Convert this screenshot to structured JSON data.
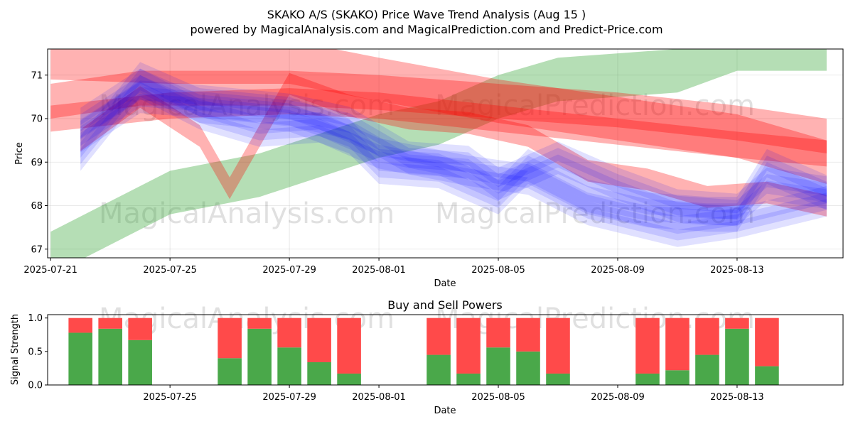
{
  "title_line1": "SKAKO A/S (SKAKO) Price Wave Trend Analysis (Aug 15 )",
  "title_line2": "powered by MagicalAnalysis.com and MagicalPrediction.com and Predict-Price.com",
  "watermarks": [
    "MagicalAnalysis.com",
    "MagicalPrediction.com"
  ],
  "colors": {
    "green": "#2ca02c",
    "red": "#ff0000",
    "blue": "#0000ff",
    "buy": "#4aa84a",
    "sell": "#ff4a4a"
  },
  "chart_data": [
    {
      "type": "area",
      "xlabel": "Date",
      "ylabel": "Price",
      "x_range": [
        "2025-07-21",
        "2025-08-16"
      ],
      "ylim": [
        66.8,
        71.6
      ],
      "yticks": [
        67,
        68,
        69,
        70,
        71
      ],
      "xtick_labels": [
        "2025-07-21",
        "2025-07-25",
        "2025-07-29",
        "2025-08-01",
        "2025-08-05",
        "2025-08-09",
        "2025-08-13"
      ],
      "grid": true,
      "series": [
        {
          "color": "green",
          "points": [
            [
              "2025-07-21",
              66.9
            ],
            [
              "2025-07-25",
              68.3
            ],
            [
              "2025-07-28",
              68.7
            ],
            [
              "2025-08-01",
              69.6
            ],
            [
              "2025-08-03",
              69.9
            ],
            [
              "2025-08-05",
              70.5
            ],
            [
              "2025-08-07",
              70.9
            ],
            [
              "2025-08-11",
              71.1
            ],
            [
              "2025-08-13",
              71.6
            ],
            [
              "2025-08-16",
              71.6
            ]
          ],
          "width": 1.0
        },
        {
          "color": "red",
          "points": [
            [
              "2025-07-21",
              71.4
            ],
            [
              "2025-07-25",
              71.3
            ],
            [
              "2025-07-29",
              71.3
            ],
            [
              "2025-08-01",
              70.9
            ],
            [
              "2025-08-05",
              70.4
            ],
            [
              "2025-08-09",
              70.0
            ],
            [
              "2025-08-13",
              69.6
            ],
            [
              "2025-08-16",
              69.0
            ]
          ],
          "width": 1.0
        },
        {
          "color": "red",
          "points": [
            [
              "2025-07-21",
              70.4
            ],
            [
              "2025-07-24",
              70.7
            ],
            [
              "2025-07-29",
              70.7
            ],
            [
              "2025-08-01",
              70.6
            ],
            [
              "2025-08-05",
              70.4
            ],
            [
              "2025-08-09",
              70.2
            ],
            [
              "2025-08-13",
              69.9
            ],
            [
              "2025-08-16",
              69.6
            ]
          ],
          "width": 0.8
        },
        {
          "color": "red",
          "points": [
            [
              "2025-07-21",
              70.0
            ],
            [
              "2025-07-25",
              70.3
            ],
            [
              "2025-07-29",
              70.4
            ],
            [
              "2025-08-01",
              70.3
            ],
            [
              "2025-08-05",
              70.0
            ],
            [
              "2025-08-09",
              69.7
            ],
            [
              "2025-08-13",
              69.4
            ],
            [
              "2025-08-16",
              69.2
            ]
          ],
          "width": 0.6
        },
        {
          "color": "red",
          "points": [
            [
              "2025-07-22",
              69.5
            ],
            [
              "2025-07-24",
              70.5
            ],
            [
              "2025-07-26",
              69.6
            ],
            [
              "2025-07-27",
              68.4
            ],
            [
              "2025-07-29",
              70.8
            ],
            [
              "2025-07-31",
              70.3
            ],
            [
              "2025-08-02",
              70.0
            ],
            [
              "2025-08-04",
              69.9
            ],
            [
              "2025-08-06",
              69.6
            ],
            [
              "2025-08-08",
              68.8
            ],
            [
              "2025-08-10",
              68.6
            ],
            [
              "2025-08-12",
              68.2
            ],
            [
              "2025-08-14",
              68.3
            ],
            [
              "2025-08-16",
              68.0
            ]
          ],
          "width": 0.5
        },
        {
          "color": "blue",
          "points": [
            [
              "2025-07-22",
              69.2
            ],
            [
              "2025-07-24",
              70.9
            ],
            [
              "2025-07-26",
              70.3
            ],
            [
              "2025-07-29",
              70.1
            ],
            [
              "2025-07-31",
              69.6
            ],
            [
              "2025-08-01",
              68.9
            ],
            [
              "2025-08-03",
              68.8
            ],
            [
              "2025-08-05",
              68.2
            ],
            [
              "2025-08-06",
              68.9
            ],
            [
              "2025-08-08",
              68.2
            ],
            [
              "2025-08-10",
              67.9
            ],
            [
              "2025-08-12",
              67.8
            ],
            [
              "2025-08-13",
              67.8
            ],
            [
              "2025-08-14",
              68.9
            ],
            [
              "2025-08-16",
              68.3
            ]
          ],
          "width": 0.5
        },
        {
          "color": "blue",
          "points": [
            [
              "2025-07-22",
              69.6
            ],
            [
              "2025-07-24",
              70.5
            ],
            [
              "2025-07-26",
              70.4
            ],
            [
              "2025-07-29",
              70.2
            ],
            [
              "2025-07-31",
              69.9
            ],
            [
              "2025-08-02",
              69.1
            ],
            [
              "2025-08-04",
              69.0
            ],
            [
              "2025-08-05",
              68.5
            ],
            [
              "2025-08-07",
              69.1
            ],
            [
              "2025-08-09",
              68.5
            ],
            [
              "2025-08-11",
              68.0
            ],
            [
              "2025-08-13",
              67.9
            ],
            [
              "2025-08-14",
              68.5
            ],
            [
              "2025-08-16",
              68.3
            ]
          ],
          "width": 0.45
        },
        {
          "color": "blue",
          "points": [
            [
              "2025-07-22",
              69.9
            ],
            [
              "2025-07-24",
              70.8
            ],
            [
              "2025-07-26",
              70.1
            ],
            [
              "2025-07-28",
              69.7
            ],
            [
              "2025-07-30",
              69.8
            ],
            [
              "2025-08-01",
              69.2
            ],
            [
              "2025-08-04",
              68.8
            ],
            [
              "2025-08-06",
              68.6
            ],
            [
              "2025-08-08",
              67.9
            ],
            [
              "2025-08-11",
              67.4
            ],
            [
              "2025-08-13",
              67.6
            ],
            [
              "2025-08-16",
              68.1
            ]
          ],
          "width": 0.4
        }
      ]
    },
    {
      "type": "bar",
      "title": "Buy and Sell Powers",
      "xlabel": "Date",
      "ylabel": "Signal Strength",
      "ylim": [
        0,
        1.05
      ],
      "yticks": [
        "0.0",
        "0.5",
        "1.0"
      ],
      "x_range": [
        "2025-07-21",
        "2025-08-16"
      ],
      "xtick_labels": [
        "2025-07-25",
        "2025-07-29",
        "2025-08-01",
        "2025-08-05",
        "2025-08-09",
        "2025-08-13"
      ],
      "series": [
        {
          "name": "buy",
          "color": "buy"
        },
        {
          "name": "sell",
          "color": "sell"
        }
      ],
      "bars": [
        {
          "date": "2025-07-22",
          "buy": 0.78
        },
        {
          "date": "2025-07-23",
          "buy": 0.84
        },
        {
          "date": "2025-07-24",
          "buy": 0.67
        },
        {
          "date": "2025-07-27",
          "buy": 0.4
        },
        {
          "date": "2025-07-28",
          "buy": 0.84
        },
        {
          "date": "2025-07-29",
          "buy": 0.56
        },
        {
          "date": "2025-07-30",
          "buy": 0.34
        },
        {
          "date": "2025-07-31",
          "buy": 0.17
        },
        {
          "date": "2025-08-03",
          "buy": 0.45
        },
        {
          "date": "2025-08-04",
          "buy": 0.17
        },
        {
          "date": "2025-08-05",
          "buy": 0.56
        },
        {
          "date": "2025-08-06",
          "buy": 0.5
        },
        {
          "date": "2025-08-07",
          "buy": 0.17
        },
        {
          "date": "2025-08-10",
          "buy": 0.17
        },
        {
          "date": "2025-08-11",
          "buy": 0.22
        },
        {
          "date": "2025-08-12",
          "buy": 0.45
        },
        {
          "date": "2025-08-13",
          "buy": 0.84
        },
        {
          "date": "2025-08-14",
          "buy": 0.28
        }
      ]
    }
  ]
}
